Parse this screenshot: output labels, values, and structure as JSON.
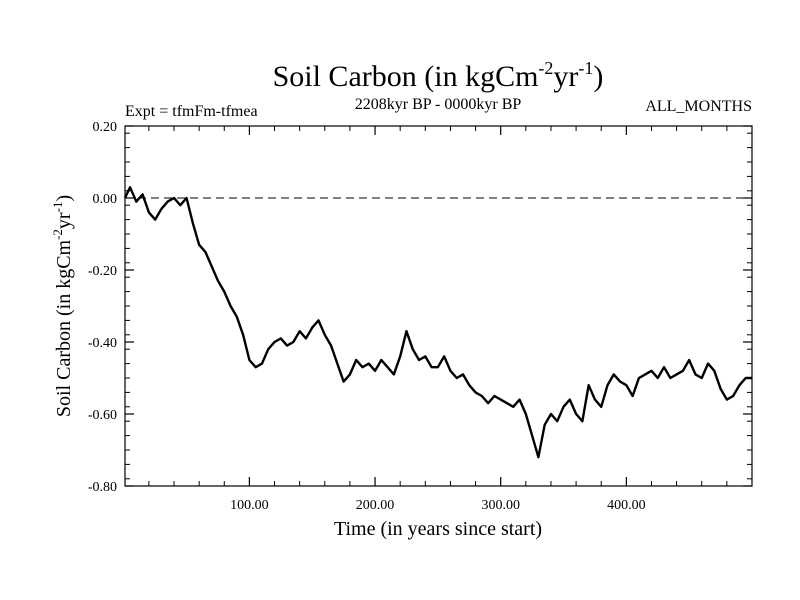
{
  "title_main": "Soil Carbon (in kgCm",
  "title_sup1": "-2",
  "title_mid": "yr",
  "title_sup2": "-1",
  "title_end": ")",
  "expt_label": "Expt = tfmFm-tfmea",
  "period_label": "2208kyr BP - 0000kyr BP",
  "months_label": "ALL_MONTHS",
  "y_axis": {
    "main": "Soil Carbon (in kgCm",
    "sup1": "-2",
    "mid": "yr",
    "sup2": "-1",
    "end": ")"
  },
  "chart_data": {
    "type": "line",
    "title": "Soil Carbon (in kgCm-2yr-1)",
    "xlabel": "Time (in years since start)",
    "ylabel": "Soil Carbon (in kgCm-2yr-1)",
    "xlim": [
      1,
      500
    ],
    "ylim": [
      -0.8,
      0.2
    ],
    "x_ticks": [
      100,
      200,
      300,
      400
    ],
    "x_tick_labels": [
      "100.00",
      "200.00",
      "300.00",
      "400.00"
    ],
    "y_ticks": [
      0.2,
      0.0,
      -0.2,
      -0.4,
      -0.6,
      -0.8
    ],
    "y_tick_labels": [
      "0.20",
      "0.00",
      "-0.20",
      "-0.40",
      "-0.60",
      "-0.80"
    ],
    "reference_line": {
      "y": 0.0,
      "style": "dashed"
    },
    "series": [
      {
        "name": "Soil Carbon",
        "color": "#000000",
        "x": [
          1,
          5,
          10,
          15,
          20,
          25,
          30,
          35,
          40,
          45,
          50,
          55,
          60,
          65,
          70,
          75,
          80,
          85,
          90,
          95,
          100,
          105,
          110,
          115,
          120,
          125,
          130,
          135,
          140,
          145,
          150,
          155,
          160,
          165,
          170,
          175,
          180,
          185,
          190,
          195,
          200,
          205,
          210,
          215,
          220,
          225,
          230,
          235,
          240,
          245,
          250,
          255,
          260,
          265,
          270,
          275,
          280,
          285,
          290,
          295,
          300,
          305,
          310,
          315,
          320,
          325,
          330,
          335,
          340,
          345,
          350,
          355,
          360,
          365,
          370,
          375,
          380,
          385,
          390,
          395,
          400,
          405,
          410,
          415,
          420,
          425,
          430,
          435,
          440,
          445,
          450,
          455,
          460,
          465,
          470,
          475,
          480,
          485,
          490,
          495,
          500
        ],
        "values": [
          0.0,
          0.03,
          -0.01,
          0.01,
          -0.04,
          -0.06,
          -0.03,
          -0.01,
          0.0,
          -0.02,
          0.0,
          -0.07,
          -0.13,
          -0.15,
          -0.19,
          -0.23,
          -0.26,
          -0.3,
          -0.33,
          -0.38,
          -0.45,
          -0.47,
          -0.46,
          -0.42,
          -0.4,
          -0.39,
          -0.41,
          -0.4,
          -0.37,
          -0.39,
          -0.36,
          -0.34,
          -0.38,
          -0.41,
          -0.46,
          -0.51,
          -0.49,
          -0.45,
          -0.47,
          -0.46,
          -0.48,
          -0.45,
          -0.47,
          -0.49,
          -0.44,
          -0.37,
          -0.42,
          -0.45,
          -0.44,
          -0.47,
          -0.47,
          -0.44,
          -0.48,
          -0.5,
          -0.49,
          -0.52,
          -0.54,
          -0.55,
          -0.57,
          -0.55,
          -0.56,
          -0.57,
          -0.58,
          -0.56,
          -0.6,
          -0.66,
          -0.72,
          -0.63,
          -0.6,
          -0.62,
          -0.58,
          -0.56,
          -0.6,
          -0.62,
          -0.52,
          -0.56,
          -0.58,
          -0.52,
          -0.49,
          -0.51,
          -0.52,
          -0.55,
          -0.5,
          -0.49,
          -0.48,
          -0.5,
          -0.47,
          -0.5,
          -0.49,
          -0.48,
          -0.45,
          -0.49,
          -0.5,
          -0.46,
          -0.48,
          -0.53,
          -0.56,
          -0.55,
          -0.52,
          -0.5,
          -0.5
        ]
      }
    ]
  }
}
